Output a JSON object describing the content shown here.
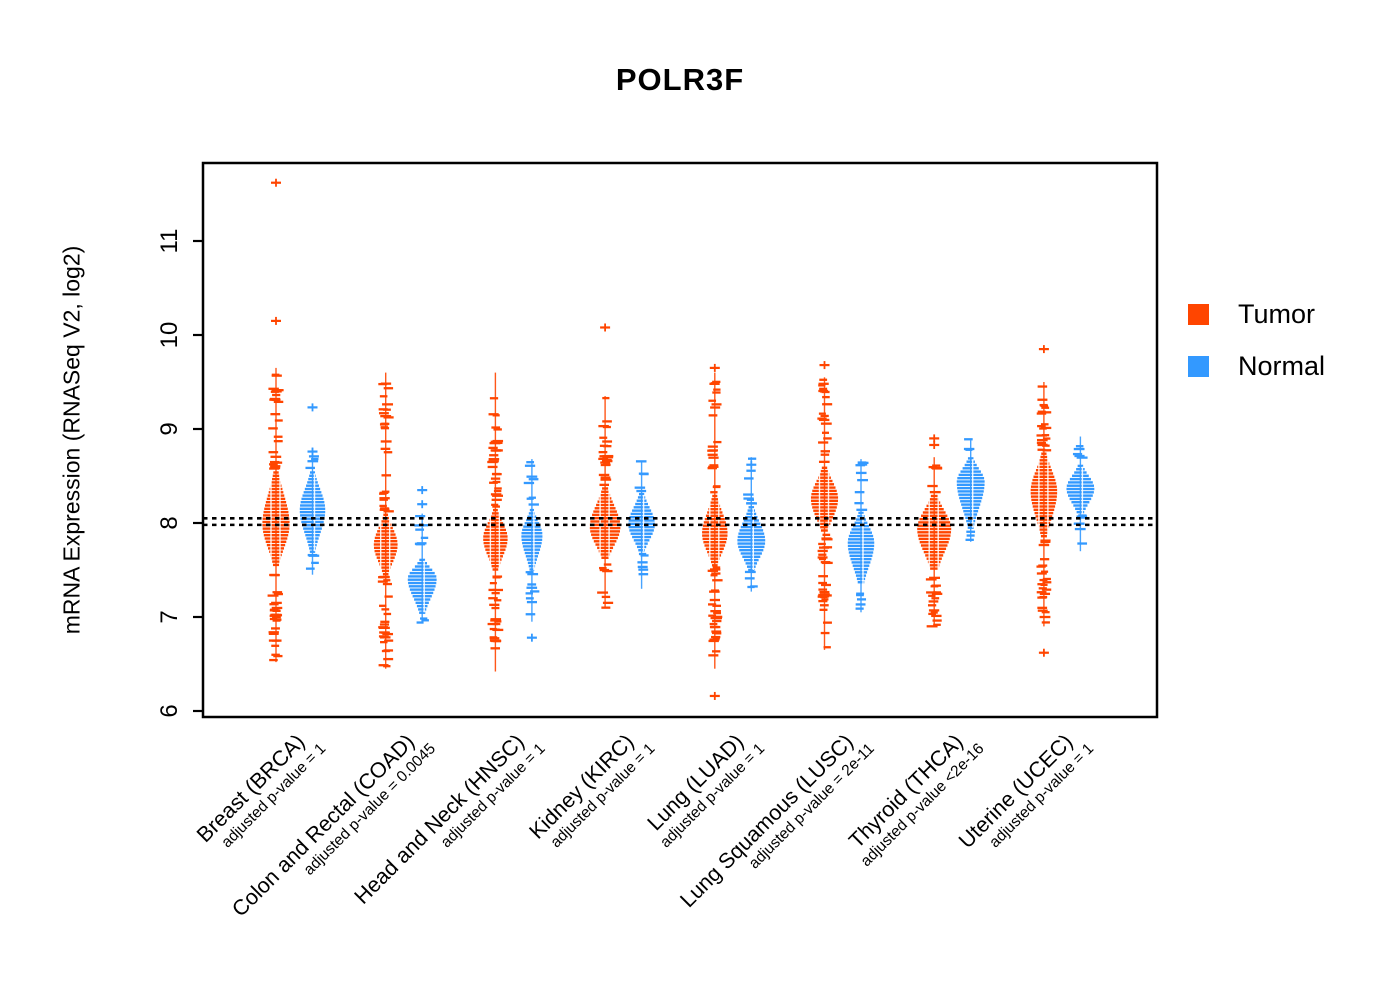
{
  "title": "POLR3F",
  "legend": {
    "tumor_label": "Tumor",
    "normal_label": "Normal"
  },
  "chart_data": {
    "type": "violin",
    "title": "POLR3F",
    "xlabel": "",
    "ylabel": "mRNA Expression (RNASeq V2, log2)",
    "yticks": [
      6,
      7,
      8,
      9,
      10,
      11
    ],
    "ylim": [
      5.9,
      11.85
    ],
    "grid": false,
    "legend_position": "right",
    "series": [
      {
        "name": "Tumor",
        "color": "#FF4500"
      },
      {
        "name": "Normal",
        "color": "#3399FF"
      }
    ],
    "series_colors": {
      "tumor": "#FF4500",
      "normal": "#3399FF"
    },
    "reference_lines": {
      "values": [
        8.05,
        7.98
      ],
      "style": "dashed",
      "color": "#000000"
    },
    "groups": [
      {
        "label": "Breast (BRCA)",
        "pvalue_label": "adjusted p-value = 1",
        "tumor": {
          "min": 6.52,
          "max": 9.65,
          "dense_min": 7.55,
          "dense_max": 8.55,
          "peak": 8.0,
          "rel_width": 0.8,
          "outliers": [
            11.62,
            10.15
          ],
          "clusters": [
            {
              "v": 9.4,
              "s": 0.22,
              "n": 10
            },
            {
              "v": 7.1,
              "s": 0.25,
              "n": 12
            }
          ]
        },
        "normal": {
          "min": 7.45,
          "max": 8.8,
          "dense_min": 7.7,
          "dense_max": 8.55,
          "peak": 8.15,
          "rel_width": 0.75,
          "outliers": [
            9.23,
            8.76
          ],
          "clusters": []
        }
      },
      {
        "label": "Colon and Rectal (COAD)",
        "pvalue_label": "adjusted p-value = 0.0045",
        "tumor": {
          "min": 6.45,
          "max": 9.6,
          "dense_min": 7.45,
          "dense_max": 8.1,
          "peak": 7.78,
          "rel_width": 0.7,
          "outliers": [],
          "clusters": [
            {
              "v": 9.15,
              "s": 0.18,
              "n": 7
            },
            {
              "v": 6.9,
              "s": 0.3,
              "n": 10
            }
          ]
        },
        "normal": {
          "min": 6.95,
          "max": 8.1,
          "dense_min": 7.05,
          "dense_max": 7.62,
          "peak": 7.42,
          "rel_width": 0.85,
          "outliers": [
            8.2,
            8.35
          ],
          "clusters": []
        }
      },
      {
        "label": "Head and Neck (HNSC)",
        "pvalue_label": "adjusted p-value = 1",
        "tumor": {
          "min": 6.42,
          "max": 9.6,
          "dense_min": 7.5,
          "dense_max": 8.15,
          "peak": 7.85,
          "rel_width": 0.72,
          "outliers": [],
          "clusters": [
            {
              "v": 8.8,
              "s": 0.3,
              "n": 8
            },
            {
              "v": 6.9,
              "s": 0.3,
              "n": 8
            }
          ]
        },
        "normal": {
          "min": 6.95,
          "max": 8.68,
          "dense_min": 7.5,
          "dense_max": 8.15,
          "peak": 7.88,
          "rel_width": 0.62,
          "outliers": [
            6.78
          ],
          "clusters": []
        }
      },
      {
        "label": "Kidney (KIRC)",
        "pvalue_label": "adjusted p-value = 1",
        "tumor": {
          "min": 7.1,
          "max": 9.35,
          "dense_min": 7.62,
          "dense_max": 8.38,
          "peak": 7.97,
          "rel_width": 0.9,
          "outliers": [
            10.08
          ],
          "clusters": [
            {
              "v": 8.8,
              "s": 0.25,
              "n": 8
            }
          ]
        },
        "normal": {
          "min": 7.3,
          "max": 8.65,
          "dense_min": 7.7,
          "dense_max": 8.32,
          "peak": 8.0,
          "rel_width": 0.78,
          "outliers": [],
          "clusters": []
        }
      },
      {
        "label": "Lung (LUAD)",
        "pvalue_label": "adjusted p-value = 1",
        "tumor": {
          "min": 6.45,
          "max": 9.6,
          "dense_min": 7.55,
          "dense_max": 8.3,
          "peak": 7.9,
          "rel_width": 0.75,
          "outliers": [
            9.65,
            6.16
          ],
          "clusters": [
            {
              "v": 7.0,
              "s": 0.3,
              "n": 12
            }
          ]
        },
        "normal": {
          "min": 7.27,
          "max": 8.7,
          "dense_min": 7.5,
          "dense_max": 8.18,
          "peak": 7.82,
          "rel_width": 0.82,
          "outliers": [
            8.62
          ],
          "clusters": []
        }
      },
      {
        "label": "Lung Squamous (LUSC)",
        "pvalue_label": "adjusted p-value = 2e-11",
        "tumor": {
          "min": 6.65,
          "max": 9.55,
          "dense_min": 7.9,
          "dense_max": 8.6,
          "peak": 8.27,
          "rel_width": 0.8,
          "outliers": [
            9.68
          ],
          "clusters": [
            {
              "v": 9.45,
              "s": 0.15,
              "n": 5
            },
            {
              "v": 7.2,
              "s": 0.32,
              "n": 12
            }
          ]
        },
        "normal": {
          "min": 7.05,
          "max": 8.68,
          "dense_min": 7.35,
          "dense_max": 8.12,
          "peak": 7.8,
          "rel_width": 0.78,
          "outliers": [],
          "clusters": []
        }
      },
      {
        "label": "Thyroid (THCA)",
        "pvalue_label": "adjusted p-value <2e-16",
        "tumor": {
          "min": 6.9,
          "max": 8.7,
          "dense_min": 7.5,
          "dense_max": 8.3,
          "peak": 7.95,
          "rel_width": 1.0,
          "outliers": [
            8.9,
            8.83
          ],
          "clusters": [
            {
              "v": 7.2,
              "s": 0.2,
              "n": 8
            }
          ]
        },
        "normal": {
          "min": 7.8,
          "max": 8.88,
          "dense_min": 7.95,
          "dense_max": 8.7,
          "peak": 8.45,
          "rel_width": 0.82,
          "outliers": [],
          "clusters": []
        }
      },
      {
        "label": "Uterine (UCEC)",
        "pvalue_label": "adjusted p-value = 1",
        "tumor": {
          "min": 6.9,
          "max": 9.5,
          "dense_min": 7.85,
          "dense_max": 8.75,
          "peak": 8.35,
          "rel_width": 0.78,
          "outliers": [
            9.85,
            6.62
          ],
          "clusters": [
            {
              "v": 9.1,
              "s": 0.3,
              "n": 10
            },
            {
              "v": 7.3,
              "s": 0.35,
              "n": 12
            }
          ]
        },
        "normal": {
          "min": 7.7,
          "max": 8.92,
          "dense_min": 8.1,
          "dense_max": 8.62,
          "peak": 8.38,
          "rel_width": 0.82,
          "outliers": [],
          "clusters": []
        }
      }
    ]
  }
}
